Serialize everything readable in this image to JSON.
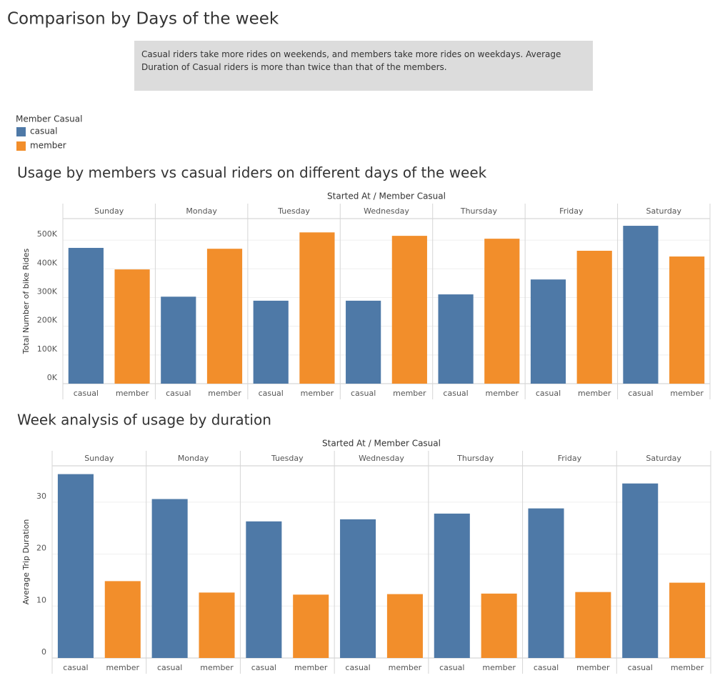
{
  "title": "Comparison by Days of the week",
  "note": "Casual riders take more rides on weekends, and members take more rides on weekdays. Average Duration of Casual riders is more than twice than that of the members.",
  "legend_title": "Member Casual",
  "chart_data": [
    {
      "type": "bar",
      "title": "Usage by members vs casual riders on different days of the week",
      "x_label": "Started At  /  Member Casual",
      "y_label": "Total Number of bike Rides",
      "categories": [
        "Sunday",
        "Monday",
        "Tuesday",
        "Wednesday",
        "Thursday",
        "Friday",
        "Saturday"
      ],
      "series": [
        {
          "name": "casual",
          "color": "#4e79a7",
          "values": [
            473000,
            303000,
            289000,
            289000,
            311000,
            363000,
            550000
          ]
        },
        {
          "name": "member",
          "color": "#f28e2b",
          "values": [
            398000,
            470000,
            527000,
            515000,
            505000,
            463000,
            443000
          ]
        }
      ],
      "ylim": [
        0,
        575000
      ],
      "yticks": [
        {
          "value": 0,
          "label": "0K"
        },
        {
          "value": 100000,
          "label": "100K"
        },
        {
          "value": 200000,
          "label": "200K"
        },
        {
          "value": 300000,
          "label": "300K"
        },
        {
          "value": 400000,
          "label": "400K"
        },
        {
          "value": 500000,
          "label": "500K"
        }
      ],
      "grid": true
    },
    {
      "type": "bar",
      "title": "Week analysis of usage by duration",
      "x_label": "Started At  /  Member Casual",
      "y_label": "Average Trip Duration",
      "categories": [
        "Sunday",
        "Monday",
        "Tuesday",
        "Wednesday",
        "Thursday",
        "Friday",
        "Saturday"
      ],
      "series": [
        {
          "name": "casual",
          "color": "#4e79a7",
          "values": [
            35.4,
            30.6,
            26.3,
            26.7,
            27.8,
            28.8,
            33.6
          ]
        },
        {
          "name": "member",
          "color": "#f28e2b",
          "values": [
            14.8,
            12.6,
            12.2,
            12.3,
            12.4,
            12.7,
            14.5
          ]
        }
      ],
      "ylim": [
        0,
        37
      ],
      "yticks": [
        0,
        10,
        20,
        30
      ],
      "grid": true
    }
  ]
}
